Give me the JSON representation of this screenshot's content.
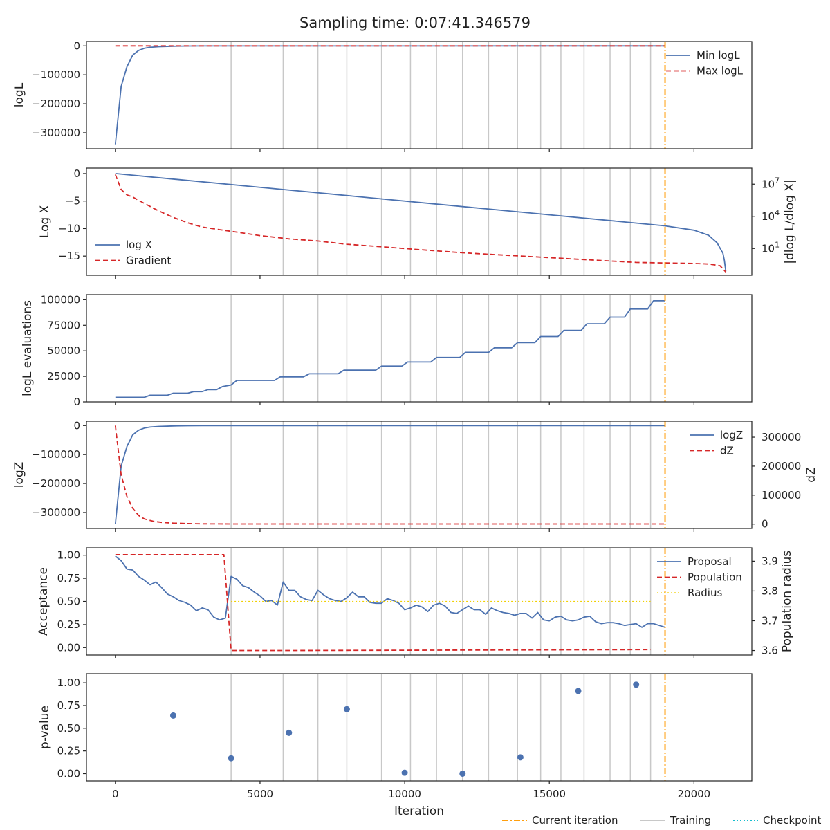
{
  "title": "Sampling time: 0:07:41.346579",
  "colors": {
    "blue": "#4c72b0",
    "red": "#d62728",
    "orange": "#ff9f0e",
    "training_gray": "#c8c8c8",
    "radius_yellow": "#f0d000",
    "checkpoint_cyan": "#17becf"
  },
  "figure_legend": [
    "Current iteration",
    "Training",
    "Checkpoint"
  ],
  "chart_data": [
    {
      "type": "line",
      "id": "loglike",
      "ylabel": "logL",
      "ylim": [
        -355000,
        15000
      ],
      "yticks": [
        0,
        -100000,
        -200000,
        -300000
      ],
      "ytick_labels": [
        "0",
        "−100000",
        "−200000",
        "−300000"
      ],
      "legend": {
        "placement": "top-right",
        "entries": [
          "Min logL",
          "Max logL"
        ]
      },
      "series": [
        {
          "name": "Min logL",
          "style": "solid",
          "x": [
            0,
            200,
            400,
            600,
            800,
            1000,
            1200,
            1500,
            2000,
            2500,
            3000,
            19000
          ],
          "y": [
            -340000,
            -140000,
            -72000,
            -32000,
            -16000,
            -8500,
            -5000,
            -2800,
            -1200,
            -600,
            -300,
            0
          ]
        },
        {
          "name": "Max logL",
          "style": "dashed",
          "x": [
            0,
            19000
          ],
          "y": [
            0,
            0
          ]
        }
      ]
    },
    {
      "type": "line",
      "id": "logx",
      "ylabel": "Log X",
      "y2label": "|dlog L/dlog X|",
      "ylim": [
        -18.5,
        1.0
      ],
      "yticks": [
        0,
        -5,
        -10,
        -15
      ],
      "ytick_labels": [
        "0",
        "−5",
        "−10",
        "−15"
      ],
      "y2_scale": "log",
      "y2_exponent_range": [
        -1.5,
        8.5
      ],
      "y2ticks": [
        7,
        4,
        1
      ],
      "y2tick_labels": [
        "10",
        "10",
        "10"
      ],
      "y2tick_exponents": [
        "7",
        "4",
        "1"
      ],
      "legend": {
        "placement": "lower-left",
        "entries": [
          "log X",
          "Gradient"
        ]
      },
      "series": [
        {
          "name": "log X",
          "style": "solid",
          "x": [
            0,
            19000,
            20000,
            20500,
            20800,
            21000,
            21050,
            21100
          ],
          "y": [
            0,
            -9.5,
            -10.3,
            -11.2,
            -12.6,
            -14.5,
            -15.8,
            -17.8
          ]
        },
        {
          "name": "Gradient",
          "style": "dashed",
          "axis": "y2",
          "x": [
            0,
            100,
            200,
            400,
            600,
            1000,
            1500,
            2000,
            2500,
            3000,
            3500,
            4000,
            5000,
            6000,
            7000,
            8000,
            9000,
            10000,
            11000,
            12000,
            13000,
            14000,
            15000,
            16000,
            17000,
            18000,
            19000,
            20000,
            20500,
            20900,
            21100
          ],
          "y": [
            7.9,
            7.2,
            6.5,
            6.0,
            5.8,
            5.2,
            4.5,
            3.9,
            3.4,
            3.0,
            2.8,
            2.6,
            2.2,
            1.9,
            1.7,
            1.4,
            1.2,
            1.0,
            0.8,
            0.6,
            0.45,
            0.3,
            0.15,
            0.0,
            -0.15,
            -0.3,
            -0.35,
            -0.4,
            -0.45,
            -0.6,
            -1.2
          ]
        }
      ]
    },
    {
      "type": "line",
      "id": "evaluations",
      "ylabel": "logL evaluations",
      "ylim": [
        0,
        105000
      ],
      "yticks": [
        0,
        25000,
        50000,
        75000,
        100000
      ],
      "ytick_labels": [
        "0",
        "25000",
        "50000",
        "75000",
        "100000"
      ],
      "series": [
        {
          "name": "evaluations",
          "style": "solid",
          "x": [
            0,
            1000,
            1200,
            1800,
            2000,
            2500,
            2700,
            3000,
            3200,
            3500,
            3700,
            4000,
            4200,
            5500,
            5700,
            6500,
            6700,
            7700,
            7900,
            9000,
            9200,
            9900,
            10100,
            10900,
            11100,
            11900,
            12100,
            12900,
            13100,
            13700,
            13900,
            14500,
            14700,
            15300,
            15500,
            16100,
            16300,
            16900,
            17100,
            17600,
            17800,
            18400,
            18600,
            19000
          ],
          "y": [
            4500,
            4500,
            6500,
            6500,
            8500,
            8500,
            10000,
            10000,
            12000,
            12000,
            15000,
            16500,
            21000,
            21000,
            24500,
            24500,
            27500,
            27500,
            31000,
            31000,
            35000,
            35000,
            39000,
            39000,
            43500,
            43500,
            48500,
            48500,
            53000,
            53000,
            58000,
            58000,
            64000,
            64000,
            70000,
            70000,
            76500,
            76500,
            83000,
            83000,
            91000,
            91000,
            99000,
            99000
          ]
        }
      ]
    },
    {
      "type": "line",
      "id": "logz",
      "ylabel": "logZ",
      "y2label": "dZ",
      "ylim": [
        -355000,
        15000
      ],
      "yticks": [
        0,
        -100000,
        -200000,
        -300000
      ],
      "ytick_labels": [
        "0",
        "−100000",
        "−200000",
        "−300000"
      ],
      "y2lim": [
        -15000,
        355000
      ],
      "y2ticks": [
        0,
        100000,
        200000,
        300000
      ],
      "y2tick_labels": [
        "0",
        "100000",
        "200000",
        "300000"
      ],
      "legend": {
        "placement": "top-right",
        "entries": [
          "logZ",
          "dZ"
        ]
      },
      "series": [
        {
          "name": "logZ",
          "style": "solid",
          "x": [
            0,
            200,
            400,
            600,
            800,
            1000,
            1200,
            1500,
            2000,
            2500,
            3000,
            19000
          ],
          "y": [
            -340000,
            -140000,
            -72000,
            -32000,
            -16000,
            -8500,
            -5000,
            -2800,
            -1200,
            -600,
            -300,
            0
          ]
        },
        {
          "name": "dZ",
          "style": "dashed",
          "axis": "y2",
          "x": [
            0,
            200,
            400,
            600,
            800,
            1000,
            1300,
            1600,
            2000,
            2500,
            3000,
            4000,
            19000
          ],
          "y": [
            340000,
            170000,
            95000,
            55000,
            30000,
            18000,
            10000,
            6000,
            3500,
            2000,
            1000,
            500,
            500
          ]
        }
      ]
    },
    {
      "type": "line",
      "id": "acceptance",
      "ylabel": "Acceptance",
      "y2label": "Population radius",
      "ylim": [
        -0.08,
        1.08
      ],
      "yticks": [
        0,
        0.25,
        0.5,
        0.75,
        1.0
      ],
      "ytick_labels": [
        "0.00",
        "0.25",
        "0.50",
        "0.75",
        "1.00"
      ],
      "y2lim": [
        3.585,
        3.945
      ],
      "y2ticks": [
        3.6,
        3.7,
        3.8,
        3.9
      ],
      "y2tick_labels": [
        "3.6",
        "3.7",
        "3.8",
        "3.9"
      ],
      "legend": {
        "placement": "top-right",
        "entries": [
          "Proposal",
          "Population",
          "Radius"
        ]
      },
      "series": [
        {
          "name": "Proposal",
          "style": "solid",
          "x": [
            0,
            200,
            400,
            600,
            800,
            1000,
            1200,
            1400,
            1600,
            1800,
            2000,
            2200,
            2400,
            2600,
            2800,
            3000,
            3200,
            3400,
            3600,
            3800,
            4000,
            4200,
            4400,
            4600,
            4800,
            5000,
            5200,
            5400,
            5600,
            5800,
            6000,
            6200,
            6400,
            6600,
            6800,
            7000,
            7200,
            7400,
            7600,
            7800,
            8000,
            8200,
            8400,
            8600,
            8800,
            9000,
            9200,
            9400,
            9600,
            9800,
            10000,
            10200,
            10400,
            10600,
            10800,
            11000,
            11200,
            11400,
            11600,
            11800,
            12000,
            12200,
            12400,
            12600,
            12800,
            13000,
            13200,
            13400,
            13600,
            13800,
            14000,
            14200,
            14400,
            14600,
            14800,
            15000,
            15200,
            15400,
            15600,
            15800,
            16000,
            16200,
            16400,
            16600,
            16800,
            17000,
            17200,
            17400,
            17600,
            17800,
            18000,
            18200,
            18400,
            18600,
            18800,
            19000
          ],
          "y": [
            0.99,
            0.94,
            0.85,
            0.84,
            0.77,
            0.73,
            0.68,
            0.71,
            0.65,
            0.58,
            0.55,
            0.51,
            0.49,
            0.46,
            0.4,
            0.43,
            0.41,
            0.33,
            0.3,
            0.32,
            0.77,
            0.74,
            0.67,
            0.65,
            0.6,
            0.56,
            0.5,
            0.51,
            0.46,
            0.71,
            0.62,
            0.62,
            0.55,
            0.52,
            0.51,
            0.62,
            0.57,
            0.53,
            0.51,
            0.5,
            0.54,
            0.6,
            0.55,
            0.55,
            0.49,
            0.48,
            0.48,
            0.53,
            0.51,
            0.48,
            0.41,
            0.43,
            0.46,
            0.44,
            0.39,
            0.46,
            0.48,
            0.45,
            0.38,
            0.37,
            0.41,
            0.45,
            0.41,
            0.41,
            0.36,
            0.43,
            0.4,
            0.38,
            0.37,
            0.35,
            0.37,
            0.37,
            0.32,
            0.38,
            0.3,
            0.29,
            0.33,
            0.34,
            0.3,
            0.29,
            0.3,
            0.33,
            0.34,
            0.28,
            0.26,
            0.27,
            0.27,
            0.26,
            0.24,
            0.25,
            0.26,
            0.22,
            0.26,
            0.26,
            0.24,
            0.22
          ]
        },
        {
          "name": "Population",
          "style": "dashed",
          "axis": "y2",
          "x": [
            0,
            3750,
            4000,
            6000,
            10000,
            14000,
            18500
          ],
          "y": [
            3.922,
            3.922,
            3.6,
            3.6,
            3.601,
            3.602,
            3.603
          ]
        },
        {
          "name": "Radius",
          "style": "dotted",
          "x": [
            4000,
            18500
          ],
          "y": [
            0.5,
            0.5
          ]
        }
      ]
    },
    {
      "type": "scatter",
      "id": "pvalue",
      "ylabel": "p-value",
      "xlabel": "Iteration",
      "ylim": [
        -0.08,
        1.1
      ],
      "yticks": [
        0,
        0.25,
        0.5,
        0.75,
        1.0
      ],
      "ytick_labels": [
        "0.00",
        "0.25",
        "0.50",
        "0.75",
        "1.00"
      ],
      "series": [
        {
          "name": "p-value",
          "x": [
            2000,
            4000,
            6000,
            8000,
            10000,
            12000,
            14000,
            16000,
            18000
          ],
          "y": [
            0.64,
            0.17,
            0.45,
            0.71,
            0.01,
            0.0,
            0.18,
            0.91,
            0.98
          ]
        }
      ]
    }
  ],
  "shared_x": {
    "xlim": [
      -1000,
      22000
    ],
    "xticks": [
      0,
      5000,
      10000,
      15000,
      20000
    ],
    "xtick_labels": [
      "0",
      "5000",
      "10000",
      "15000",
      "20000"
    ],
    "current_iteration": 19000,
    "training_lines": [
      4000,
      5800,
      7000,
      8000,
      9200,
      10200,
      11100,
      12000,
      12900,
      13900,
      14700,
      15400,
      16200,
      17100,
      17800,
      18500
    ]
  }
}
